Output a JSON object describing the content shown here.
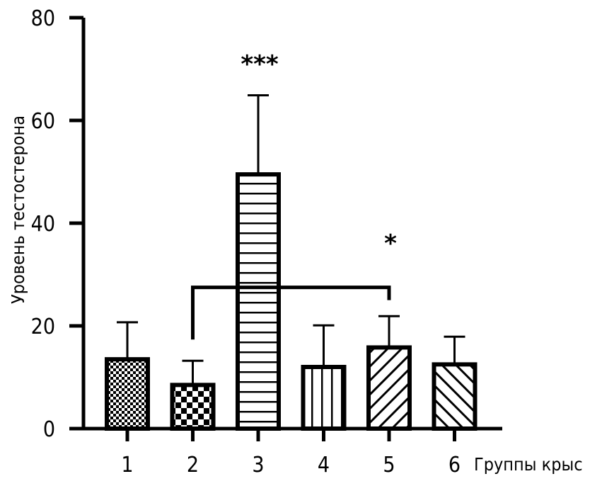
{
  "chart_data": {
    "type": "bar",
    "title": "",
    "xlabel": "Группы крыс",
    "ylabel": "Уровень тестостерона",
    "ylim": [
      0,
      80
    ],
    "yticks": [
      0,
      20,
      40,
      60,
      80
    ],
    "categories": [
      "1",
      "2",
      "3",
      "4",
      "5",
      "6"
    ],
    "values": [
      13.5,
      8.5,
      49.5,
      12,
      15.8,
      12.5
    ],
    "errors": [
      7.2,
      4.7,
      15.4,
      8.1,
      6.1,
      5.4
    ],
    "patterns": [
      "checker-fine",
      "checker-coarse",
      "horizontal-lines",
      "vertical-lines",
      "diagonal-right",
      "diagonal-left"
    ],
    "significance": [
      {
        "category": "3",
        "label": "***"
      },
      {
        "category": "5",
        "label": "*"
      }
    ],
    "bracket": {
      "from": "2",
      "to": "5",
      "y": 27.5
    },
    "colors": {
      "bar_fill": "#ffffff",
      "ink": "#000000"
    }
  }
}
